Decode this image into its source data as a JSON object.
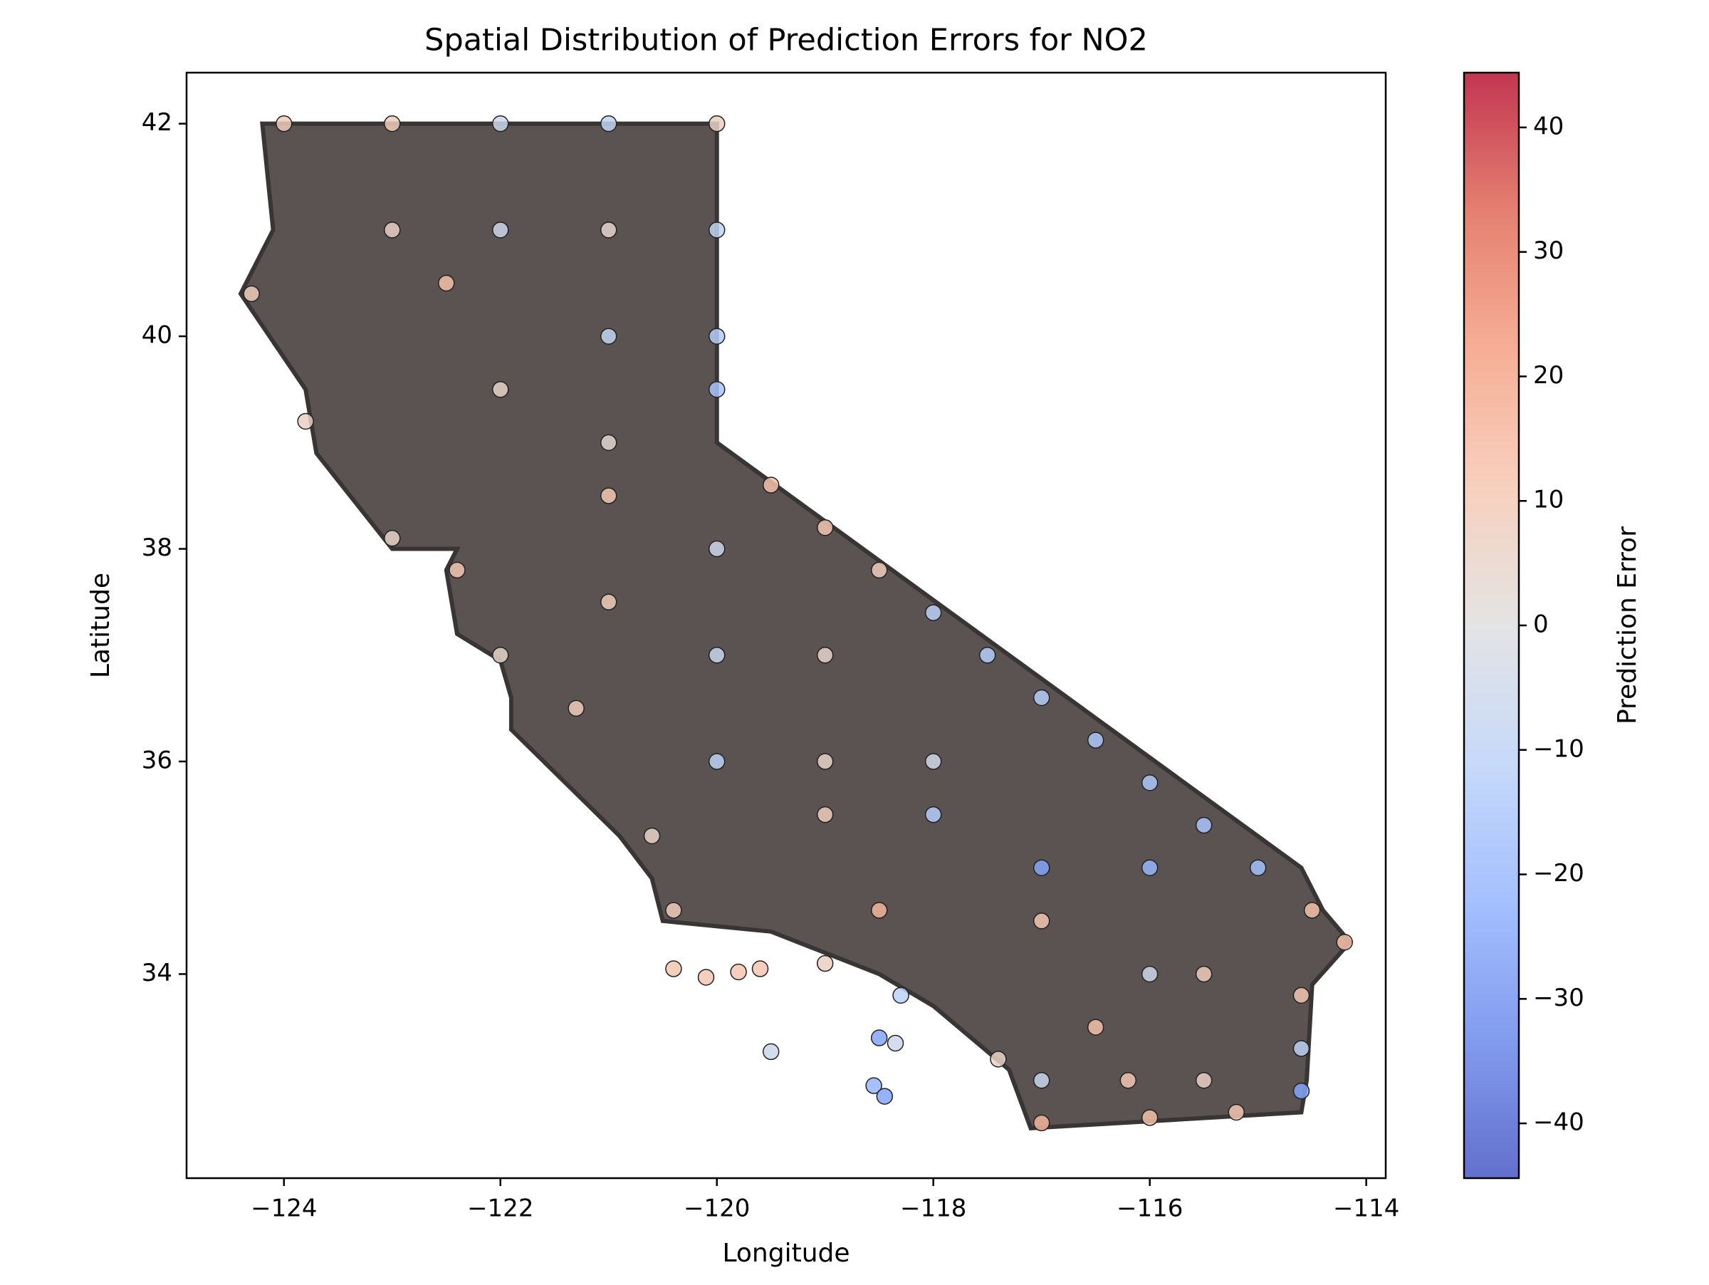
{
  "chart_data": {
    "type": "scatter",
    "title": "Spatial Distribution of Prediction Errors for NO2",
    "x_label": "Longitude",
    "y_label": "Latitude",
    "colorbar_label": "Prediction Error",
    "colormap": "coolwarm",
    "xlim": [
      -124.9,
      -113.82
    ],
    "ylim": [
      32.08,
      42.48
    ],
    "clim": [
      -44.4,
      44.4
    ],
    "xticks": [
      {
        "value": -124,
        "label": "−124"
      },
      {
        "value": -122,
        "label": "−122"
      },
      {
        "value": -120,
        "label": "−120"
      },
      {
        "value": -118,
        "label": "−118"
      },
      {
        "value": -116,
        "label": "−116"
      },
      {
        "value": -114,
        "label": "−114"
      }
    ],
    "yticks": [
      34,
      36,
      38,
      40,
      42
    ],
    "cticks": [
      {
        "value": -40,
        "label": "−40"
      },
      {
        "value": -30,
        "label": "−30"
      },
      {
        "value": -20,
        "label": "−20"
      },
      {
        "value": -10,
        "label": "−10"
      },
      0,
      10,
      20,
      30,
      40
    ],
    "x": [
      -124,
      -123,
      -122,
      -121,
      -120,
      -120,
      -120,
      -120,
      -119.5,
      -119,
      -118.5,
      -118,
      -117.5,
      -117,
      -116.5,
      -116,
      -115.5,
      -115,
      -114.5,
      -114.2,
      -114.6,
      -114.6,
      -114.6,
      -117,
      -116,
      -115.2,
      -124.3,
      -123.8,
      -123,
      -122.4,
      -122,
      -121.3,
      -120.6,
      -120.4,
      -119,
      -118.3,
      -117.4,
      -120.4,
      -120.1,
      -119.8,
      -119.6,
      -119.5,
      -118.5,
      -118.35,
      -118.55,
      -118.45,
      -123,
      -122,
      -121,
      -122.5,
      -121,
      -122,
      -121,
      -121,
      -120,
      -121,
      -120,
      -119,
      -120,
      -119,
      -118,
      -119,
      -118,
      -117,
      -116,
      -117,
      -116,
      -115.5,
      -116.5,
      -115.5,
      -117,
      -118.5,
      -116.2
    ],
    "y": [
      42,
      42,
      42,
      42,
      42,
      41,
      40,
      39.5,
      38.6,
      38.2,
      37.8,
      37.4,
      37,
      36.6,
      36.2,
      35.8,
      35.4,
      35,
      34.6,
      34.3,
      33.8,
      33.3,
      32.9,
      32.6,
      32.65,
      32.7,
      40.4,
      39.2,
      38.1,
      37.8,
      37,
      36.5,
      35.3,
      34.6,
      34.1,
      33.8,
      33.2,
      34.05,
      33.97,
      34.02,
      34.05,
      33.27,
      33.4,
      33.35,
      32.95,
      32.85,
      41,
      41,
      41,
      40.5,
      40,
      39.5,
      39,
      38.5,
      38,
      37.5,
      37,
      37,
      36,
      36,
      36,
      35.5,
      35.5,
      35,
      35,
      34.5,
      34,
      34,
      33.5,
      33,
      33,
      34.6,
      33
    ],
    "values": [
      8,
      8,
      -5,
      -8,
      6,
      -8,
      -12,
      -15,
      12,
      10,
      8,
      -10,
      -12,
      -12,
      -14,
      -14,
      -15,
      -16,
      12,
      12,
      10,
      -10,
      -25,
      15,
      12,
      10,
      8,
      6,
      5,
      10,
      5,
      8,
      5,
      8,
      6,
      -10,
      5,
      10,
      10,
      10,
      10,
      -5,
      -25,
      -5,
      -20,
      -25,
      6,
      -5,
      4,
      12,
      -8,
      5,
      3,
      10,
      -5,
      8,
      -6,
      4,
      -10,
      5,
      -4,
      8,
      -12,
      -25,
      -20,
      10,
      -5,
      8,
      12,
      6,
      -6,
      15,
      10
    ]
  }
}
